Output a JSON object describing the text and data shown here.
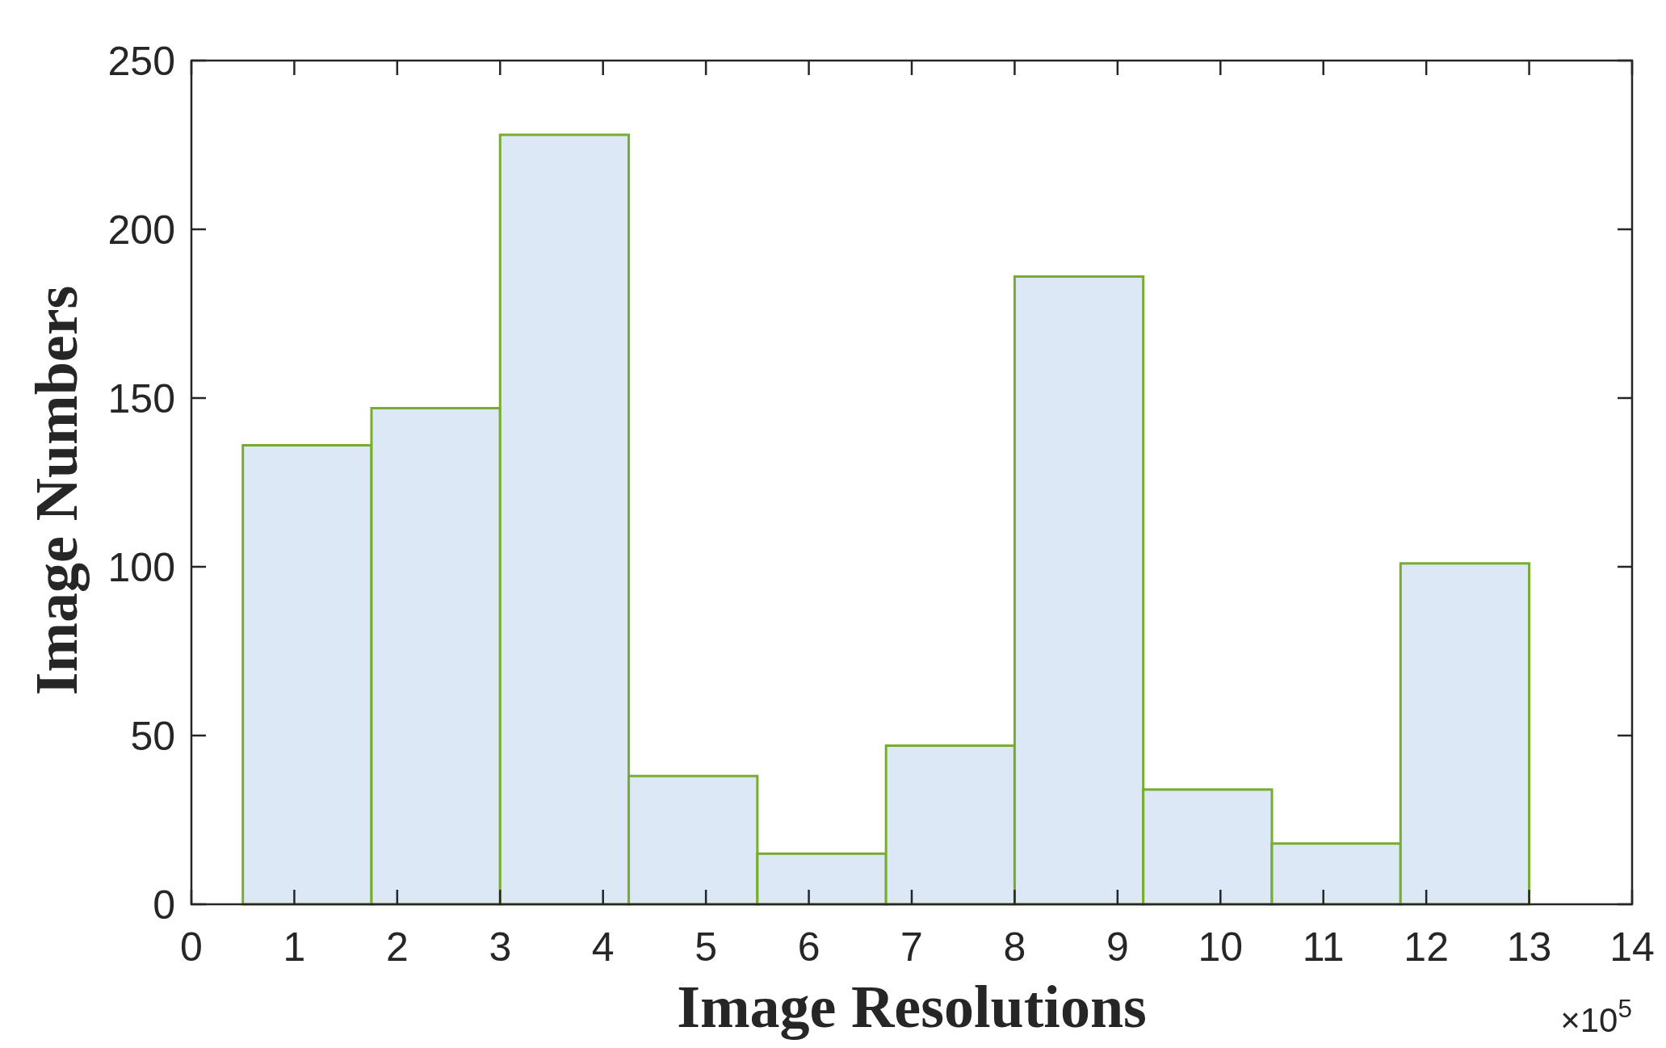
{
  "chart_data": {
    "type": "histogram",
    "xlabel": "Image Resolutions",
    "ylabel": "Image Numbers",
    "bins": [
      0.5,
      1.75,
      3,
      4.25,
      5.5,
      6.75,
      8,
      9.25,
      10.5,
      11.75,
      13
    ],
    "values": [
      136,
      147,
      228,
      38,
      15,
      47,
      186,
      34,
      18,
      101
    ],
    "color": "#dce8f6",
    "xlim": [
      0,
      14
    ],
    "xticks": [
      0,
      1,
      2,
      3,
      4,
      5,
      6,
      7,
      8,
      9,
      10,
      11,
      12,
      13,
      14
    ],
    "ylim": [
      0,
      250
    ],
    "yticks": [
      0,
      50,
      100,
      150,
      200,
      250
    ],
    "annotations": [
      "×10$^{5}$"
    ]
  }
}
